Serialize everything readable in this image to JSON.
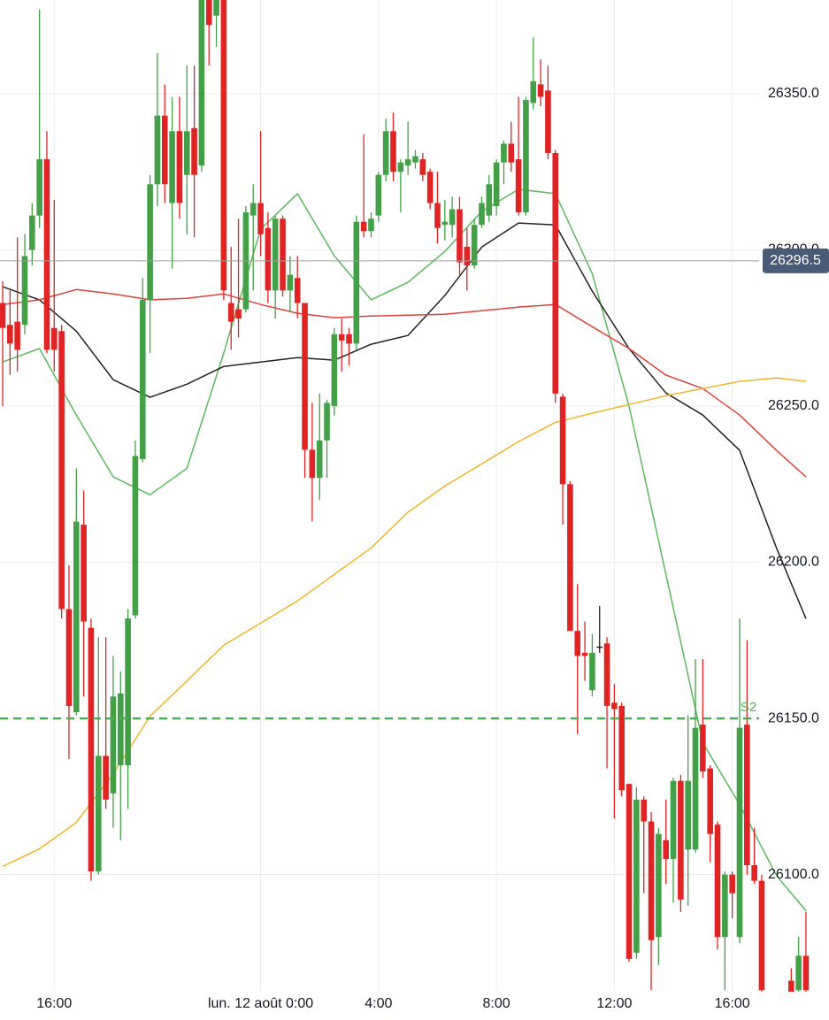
{
  "chart_data": {
    "type": "candlestick",
    "categories": [
      null,
      null,
      null,
      null,
      null,
      null,
      null,
      "16:00",
      null,
      null,
      null,
      null,
      null,
      null,
      null,
      null,
      null,
      null,
      null,
      null,
      null,
      null,
      null,
      null,
      null,
      null,
      null,
      null,
      null,
      null,
      null,
      null,
      null,
      null,
      null,
      "lun. 12 août 0:00",
      null,
      null,
      null,
      null,
      null,
      null,
      null,
      null,
      null,
      null,
      null,
      null,
      null,
      null,
      null,
      "4:00",
      null,
      null,
      null,
      null,
      null,
      null,
      null,
      null,
      null,
      null,
      null,
      null,
      null,
      null,
      null,
      "8:00",
      null,
      null,
      null,
      null,
      null,
      null,
      null,
      null,
      null,
      null,
      null,
      null,
      null,
      null,
      null,
      "12:00",
      null,
      null,
      null,
      null,
      null,
      null,
      null,
      null,
      null,
      null,
      null,
      null,
      null,
      null,
      null,
      "16:00",
      null,
      null,
      null,
      null,
      null,
      null,
      null,
      null,
      null,
      null
    ],
    "open": [
      26283,
      26276,
      26277,
      26276,
      26300,
      26311,
      26329,
      26275,
      26274,
      26185,
      26152,
      26212,
      26179,
      26101,
      26138,
      26126,
      26135,
      26135,
      26183,
      26233,
      26284,
      26321,
      26343,
      26315,
      26338,
      26324,
      26339,
      26327,
      26385,
      26375,
      26390,
      26283,
      26281,
      26281,
      26311,
      26315,
      26307,
      26287,
      26310,
      26287,
      26291,
      26283,
      26236,
      26227,
      26239,
      26250,
      26273,
      26273,
      26270,
      26309,
      26306,
      26311,
      26324,
      26338,
      26325,
      26327,
      26328,
      26329,
      26325,
      26315,
      26308,
      26308,
      26313,
      26301,
      26295,
      26308,
      26311,
      26314,
      26328,
      26334,
      26329,
      26312,
      26347,
      26353,
      26351,
      26331,
      26253,
      26225,
      26178,
      26171,
      26159,
      26173,
      26174,
      26155,
      26154,
      26129,
      26075,
      26124,
      26117,
      26080,
      26111,
      26105,
      26130,
      26108,
      26108,
      26148,
      26134,
      26116,
      26080,
      26100,
      26080,
      26148,
      26103,
      26098,
      null,
      null,
      null,
      26066,
      26063,
      26074
    ],
    "high": [
      26290,
      26287,
      26304,
      26305,
      26315,
      26377,
      26338,
      26316,
      26276,
      26199,
      26230,
      26223,
      26182,
      26176,
      26176,
      26170,
      26165,
      26185,
      26239,
      26291,
      26324,
      26363,
      26353,
      26349,
      26349,
      26359,
      26359,
      26390,
      26395,
      26395,
      26395,
      26301,
      26310,
      26314,
      26321,
      26338,
      26312,
      26311,
      26311,
      26298,
      26298,
      26283,
      26251,
      26254,
      26252,
      26275,
      26278,
      26275,
      26311,
      26337,
      26312,
      26325,
      26342,
      26344,
      26329,
      26341,
      26332,
      26331,
      26326,
      26325,
      26316,
      26317,
      26317,
      26307,
      26310,
      26317,
      26324,
      26329,
      26335,
      26341,
      26349,
      26349,
      26368,
      26361,
      26359,
      26332,
      26254,
      26226,
      26193,
      26181,
      26177,
      26186,
      26176,
      26161,
      26155,
      26129,
      26128,
      26125,
      26120,
      26115,
      26124,
      26131,
      26132,
      26151,
      26169,
      26169,
      26135,
      26117,
      26101,
      26101,
      26182,
      26175,
      26115,
      26100,
      null,
      null,
      null,
      26070,
      26080,
      26088
    ],
    "low": [
      26250,
      26260,
      26261,
      26273,
      26295,
      26307,
      26267,
      26261,
      26182,
      26137,
      26151,
      26157,
      26098,
      26100,
      26121,
      26115,
      26111,
      26121,
      26182,
      26232,
      26267,
      26314,
      26315,
      26294,
      26310,
      26305,
      26304,
      26325,
      26359,
      26365,
      26284,
      26268,
      26272,
      26280,
      26287,
      26298,
      26283,
      26278,
      26285,
      26280,
      26278,
      26227,
      26213,
      26220,
      26227,
      26247,
      26261,
      26263,
      26268,
      26304,
      26304,
      26309,
      26322,
      26322,
      26312,
      26324,
      26326,
      26322,
      26313,
      26302,
      26303,
      26304,
      26292,
      26287,
      26294,
      26307,
      26309,
      26311,
      26321,
      26325,
      26311,
      26311,
      26345,
      26346,
      26329,
      26251,
      26212,
      26178,
      26145,
      26162,
      26157,
      26171,
      26134,
      26118,
      26125,
      26072,
      26073,
      26094,
      26063,
      26071,
      26097,
      26091,
      26088,
      26090,
      26107,
      26131,
      26104,
      26076,
      26063,
      26086,
      26078,
      26100,
      26097,
      26062,
      null,
      null,
      null,
      26060,
      26061,
      26061
    ],
    "close": [
      26275,
      26270,
      26268,
      26298,
      26311,
      26329,
      26268,
      26268,
      26185,
      26154,
      26213,
      26181,
      26101,
      26138,
      26124,
      26157,
      26158,
      26182,
      26234,
      26284,
      26321,
      26343,
      26321,
      26338,
      26315,
      26338,
      26324,
      26380,
      26372,
      26385,
      26287,
      26277,
      26278,
      26312,
      26315,
      26305,
      26287,
      26310,
      26287,
      26292,
      26283,
      26236,
      26227,
      26239,
      26251,
      26273,
      26271,
      26270,
      26309,
      26306,
      26310,
      26324,
      26338,
      26325,
      26328,
      26329,
      26330,
      26324,
      26315,
      26307,
      26309,
      26313,
      26296,
      26295,
      26308,
      26315,
      26321,
      26328,
      26334,
      26328,
      26312,
      26348,
      26354,
      26349,
      26331,
      26254,
      26225,
      26178,
      26170,
      26170,
      26171,
      26173,
      26154,
      26153,
      26127,
      26073,
      26124,
      26117,
      26079,
      26113,
      26105,
      26130,
      26092,
      26130,
      26147,
      26133,
      26113,
      26080,
      26100,
      26094,
      26147,
      26103,
      26098,
      26063,
      null,
      null,
      null,
      26062,
      26074,
      26063
    ],
    "up_color": "#43a047",
    "down_color": "#e02424",
    "doji_color": "#222222",
    "lines": [
      {
        "color": "#5cb85c",
        "x": [
          0,
          5,
          10,
          15,
          20,
          25,
          30,
          35,
          40,
          45,
          50,
          55,
          60,
          65,
          70,
          75,
          80,
          85,
          90,
          95,
          100,
          105,
          109
        ],
        "values": [
          26264.1,
          26268.4,
          26247.1,
          26227.3,
          26221.6,
          26230.1,
          26267,
          26306.6,
          26318,
          26298.1,
          26284,
          26289.6,
          26299.5,
          26312.3,
          26319.4,
          26318,
          26292.4,
          26250,
          26196.1,
          26142.2,
          26122.4,
          26099.7,
          26088.4
        ]
      },
      {
        "color": "#222222",
        "x": [
          0,
          5,
          10,
          15,
          20,
          25,
          30,
          35,
          40,
          45,
          50,
          55,
          60,
          65,
          70,
          75,
          80,
          85,
          90,
          95,
          100,
          105,
          109
        ],
        "values": [
          26288.2,
          26284,
          26274,
          26258.4,
          26252.8,
          26257,
          26262.7,
          26264.1,
          26265.5,
          26264.7,
          26269.8,
          26272.6,
          26285.4,
          26300.9,
          26308.6,
          26308,
          26286.8,
          26268.4,
          26254.2,
          26247.1,
          26235.8,
          26204.6,
          26181.9
        ]
      },
      {
        "color": "#e0403a",
        "x": [
          0,
          5,
          10,
          15,
          20,
          25,
          30,
          35,
          40,
          45,
          50,
          55,
          60,
          65,
          70,
          75,
          80,
          85,
          90,
          95,
          100,
          105,
          109
        ],
        "values": [
          26282.5,
          26284,
          26287.3,
          26285.9,
          26284,
          26284.5,
          26285.9,
          26282.5,
          26279.7,
          26278.3,
          26278.8,
          26279.1,
          26279.4,
          26280.5,
          26281.7,
          26282.5,
          26275.4,
          26268.4,
          26259.9,
          26255.6,
          26247.1,
          26235.8,
          26227.3
        ]
      },
      {
        "color": "#f0b429",
        "x": [
          0,
          5,
          10,
          15,
          20,
          25,
          30,
          35,
          40,
          45,
          50,
          55,
          60,
          65,
          70,
          75,
          80,
          85,
          90,
          95,
          100,
          105,
          109
        ],
        "values": [
          26102.6,
          26108.2,
          26116.7,
          26132.3,
          26150.7,
          26162,
          26173.4,
          26180.5,
          26187.6,
          26196.1,
          26204.6,
          26216,
          26224.4,
          26231.5,
          26238.6,
          26244.8,
          26247.7,
          26250.5,
          26253.3,
          26255.6,
          26257.9,
          26259,
          26257.9
        ]
      }
    ],
    "level": {
      "label": "S2",
      "value": 26150,
      "color": "#4caf50"
    },
    "last_price": 26296.5,
    "ylim": [
      26062.5,
      26380
    ],
    "yticks": [
      {
        "value": 26100,
        "label": "26100.0"
      },
      {
        "value": 26150,
        "label": "26150.0"
      },
      {
        "value": 26200,
        "label": "26200.0"
      },
      {
        "value": 26250,
        "label": "26250.0"
      },
      {
        "value": 26300,
        "label": "26300.0"
      },
      {
        "value": 26350,
        "label": "26350.0"
      }
    ],
    "grid": true
  }
}
